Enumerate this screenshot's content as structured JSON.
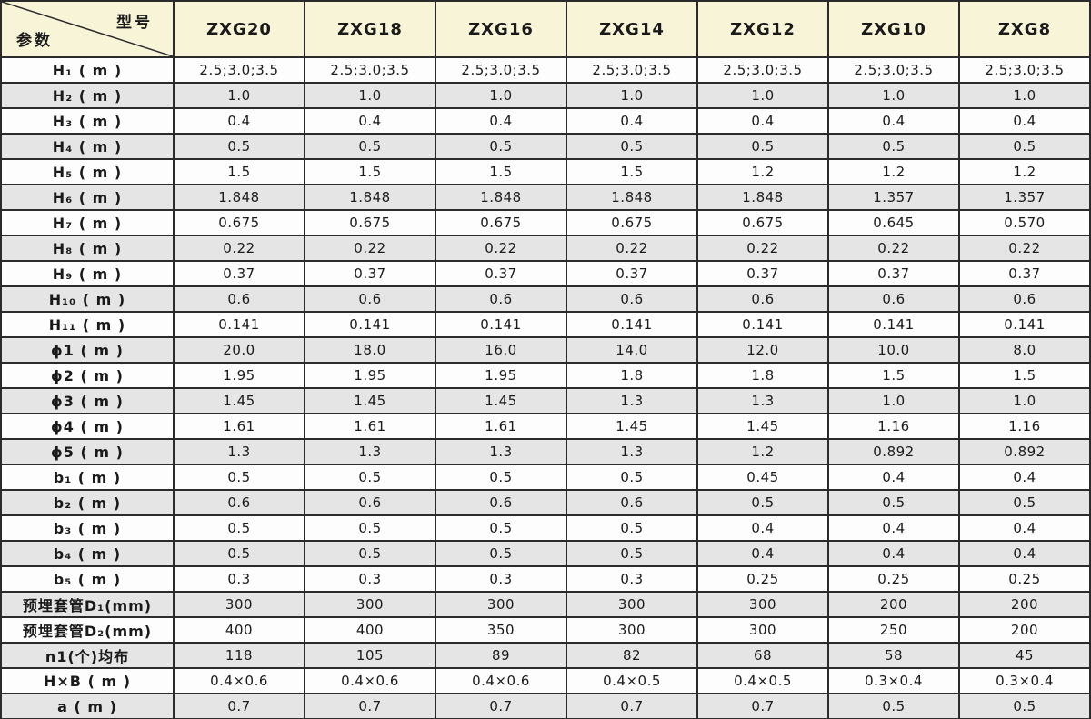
{
  "table": {
    "corner": {
      "top_right_label": "型号",
      "bottom_left_label": "参数"
    },
    "columns": [
      "ZXG20",
      "ZXG18",
      "ZXG16",
      "ZXG14",
      "ZXG12",
      "ZXG10",
      "ZXG8"
    ],
    "rows": [
      {
        "label": "H₁ ( m )",
        "values": [
          "2.5;3.0;3.5",
          "2.5;3.0;3.5",
          "2.5;3.0;3.5",
          "2.5;3.0;3.5",
          "2.5;3.0;3.5",
          "2.5;3.0;3.5",
          "2.5;3.0;3.5"
        ]
      },
      {
        "label": "H₂ ( m )",
        "values": [
          "1.0",
          "1.0",
          "1.0",
          "1.0",
          "1.0",
          "1.0",
          "1.0"
        ]
      },
      {
        "label": "H₃ ( m )",
        "values": [
          "0.4",
          "0.4",
          "0.4",
          "0.4",
          "0.4",
          "0.4",
          "0.4"
        ]
      },
      {
        "label": "H₄ ( m )",
        "values": [
          "0.5",
          "0.5",
          "0.5",
          "0.5",
          "0.5",
          "0.5",
          "0.5"
        ]
      },
      {
        "label": "H₅ ( m )",
        "values": [
          "1.5",
          "1.5",
          "1.5",
          "1.5",
          "1.2",
          "1.2",
          "1.2"
        ]
      },
      {
        "label": "H₆ ( m )",
        "values": [
          "1.848",
          "1.848",
          "1.848",
          "1.848",
          "1.848",
          "1.357",
          "1.357"
        ]
      },
      {
        "label": "H₇ ( m )",
        "values": [
          "0.675",
          "0.675",
          "0.675",
          "0.675",
          "0.675",
          "0.645",
          "0.570"
        ]
      },
      {
        "label": "H₈ ( m )",
        "values": [
          "0.22",
          "0.22",
          "0.22",
          "0.22",
          "0.22",
          "0.22",
          "0.22"
        ]
      },
      {
        "label": "H₉ ( m )",
        "values": [
          "0.37",
          "0.37",
          "0.37",
          "0.37",
          "0.37",
          "0.37",
          "0.37"
        ]
      },
      {
        "label": "H₁₀ ( m )",
        "values": [
          "0.6",
          "0.6",
          "0.6",
          "0.6",
          "0.6",
          "0.6",
          "0.6"
        ]
      },
      {
        "label": "H₁₁ ( m )",
        "values": [
          "0.141",
          "0.141",
          "0.141",
          "0.141",
          "0.141",
          "0.141",
          "0.141"
        ]
      },
      {
        "label": "ϕ1 ( m )",
        "values": [
          "20.0",
          "18.0",
          "16.0",
          "14.0",
          "12.0",
          "10.0",
          "8.0"
        ]
      },
      {
        "label": "ϕ2 ( m )",
        "values": [
          "1.95",
          "1.95",
          "1.95",
          "1.8",
          "1.8",
          "1.5",
          "1.5"
        ]
      },
      {
        "label": "ϕ3 ( m )",
        "values": [
          "1.45",
          "1.45",
          "1.45",
          "1.3",
          "1.3",
          "1.0",
          "1.0"
        ]
      },
      {
        "label": "ϕ4 ( m )",
        "values": [
          "1.61",
          "1.61",
          "1.61",
          "1.45",
          "1.45",
          "1.16",
          "1.16"
        ]
      },
      {
        "label": "ϕ5 ( m )",
        "values": [
          "1.3",
          "1.3",
          "1.3",
          "1.3",
          "1.2",
          "0.892",
          "0.892"
        ]
      },
      {
        "label": "b₁ ( m )",
        "values": [
          "0.5",
          "0.5",
          "0.5",
          "0.5",
          "0.45",
          "0.4",
          "0.4"
        ]
      },
      {
        "label": "b₂ ( m )",
        "values": [
          "0.6",
          "0.6",
          "0.6",
          "0.6",
          "0.5",
          "0.5",
          "0.5"
        ]
      },
      {
        "label": "b₃ ( m )",
        "values": [
          "0.5",
          "0.5",
          "0.5",
          "0.5",
          "0.4",
          "0.4",
          "0.4"
        ]
      },
      {
        "label": "b₄ ( m )",
        "values": [
          "0.5",
          "0.5",
          "0.5",
          "0.5",
          "0.4",
          "0.4",
          "0.4"
        ]
      },
      {
        "label": "b₅ ( m )",
        "values": [
          "0.3",
          "0.3",
          "0.3",
          "0.3",
          "0.25",
          "0.25",
          "0.25"
        ]
      },
      {
        "label": "预埋套管D₁(mm)",
        "values": [
          "300",
          "300",
          "300",
          "300",
          "300",
          "200",
          "200"
        ]
      },
      {
        "label": "预埋套管D₂(mm)",
        "values": [
          "400",
          "400",
          "350",
          "300",
          "300",
          "250",
          "200"
        ]
      },
      {
        "label": "n1(个)均布",
        "values": [
          "118",
          "105",
          "89",
          "82",
          "68",
          "58",
          "45"
        ]
      },
      {
        "label": "H×B ( m )",
        "values": [
          "0.4×0.6",
          "0.4×0.6",
          "0.4×0.6",
          "0.4×0.5",
          "0.4×0.5",
          "0.3×0.4",
          "0.3×0.4"
        ]
      },
      {
        "label": "a ( m )",
        "values": [
          "0.7",
          "0.7",
          "0.7",
          "0.7",
          "0.7",
          "0.5",
          "0.5"
        ]
      }
    ]
  },
  "colors": {
    "header_bg": "#f8f4d8",
    "row_even_bg": "#fdfdfd",
    "row_odd_bg": "#e5e5e5",
    "border": "#2b2b2b",
    "text": "#1a1a1a"
  }
}
